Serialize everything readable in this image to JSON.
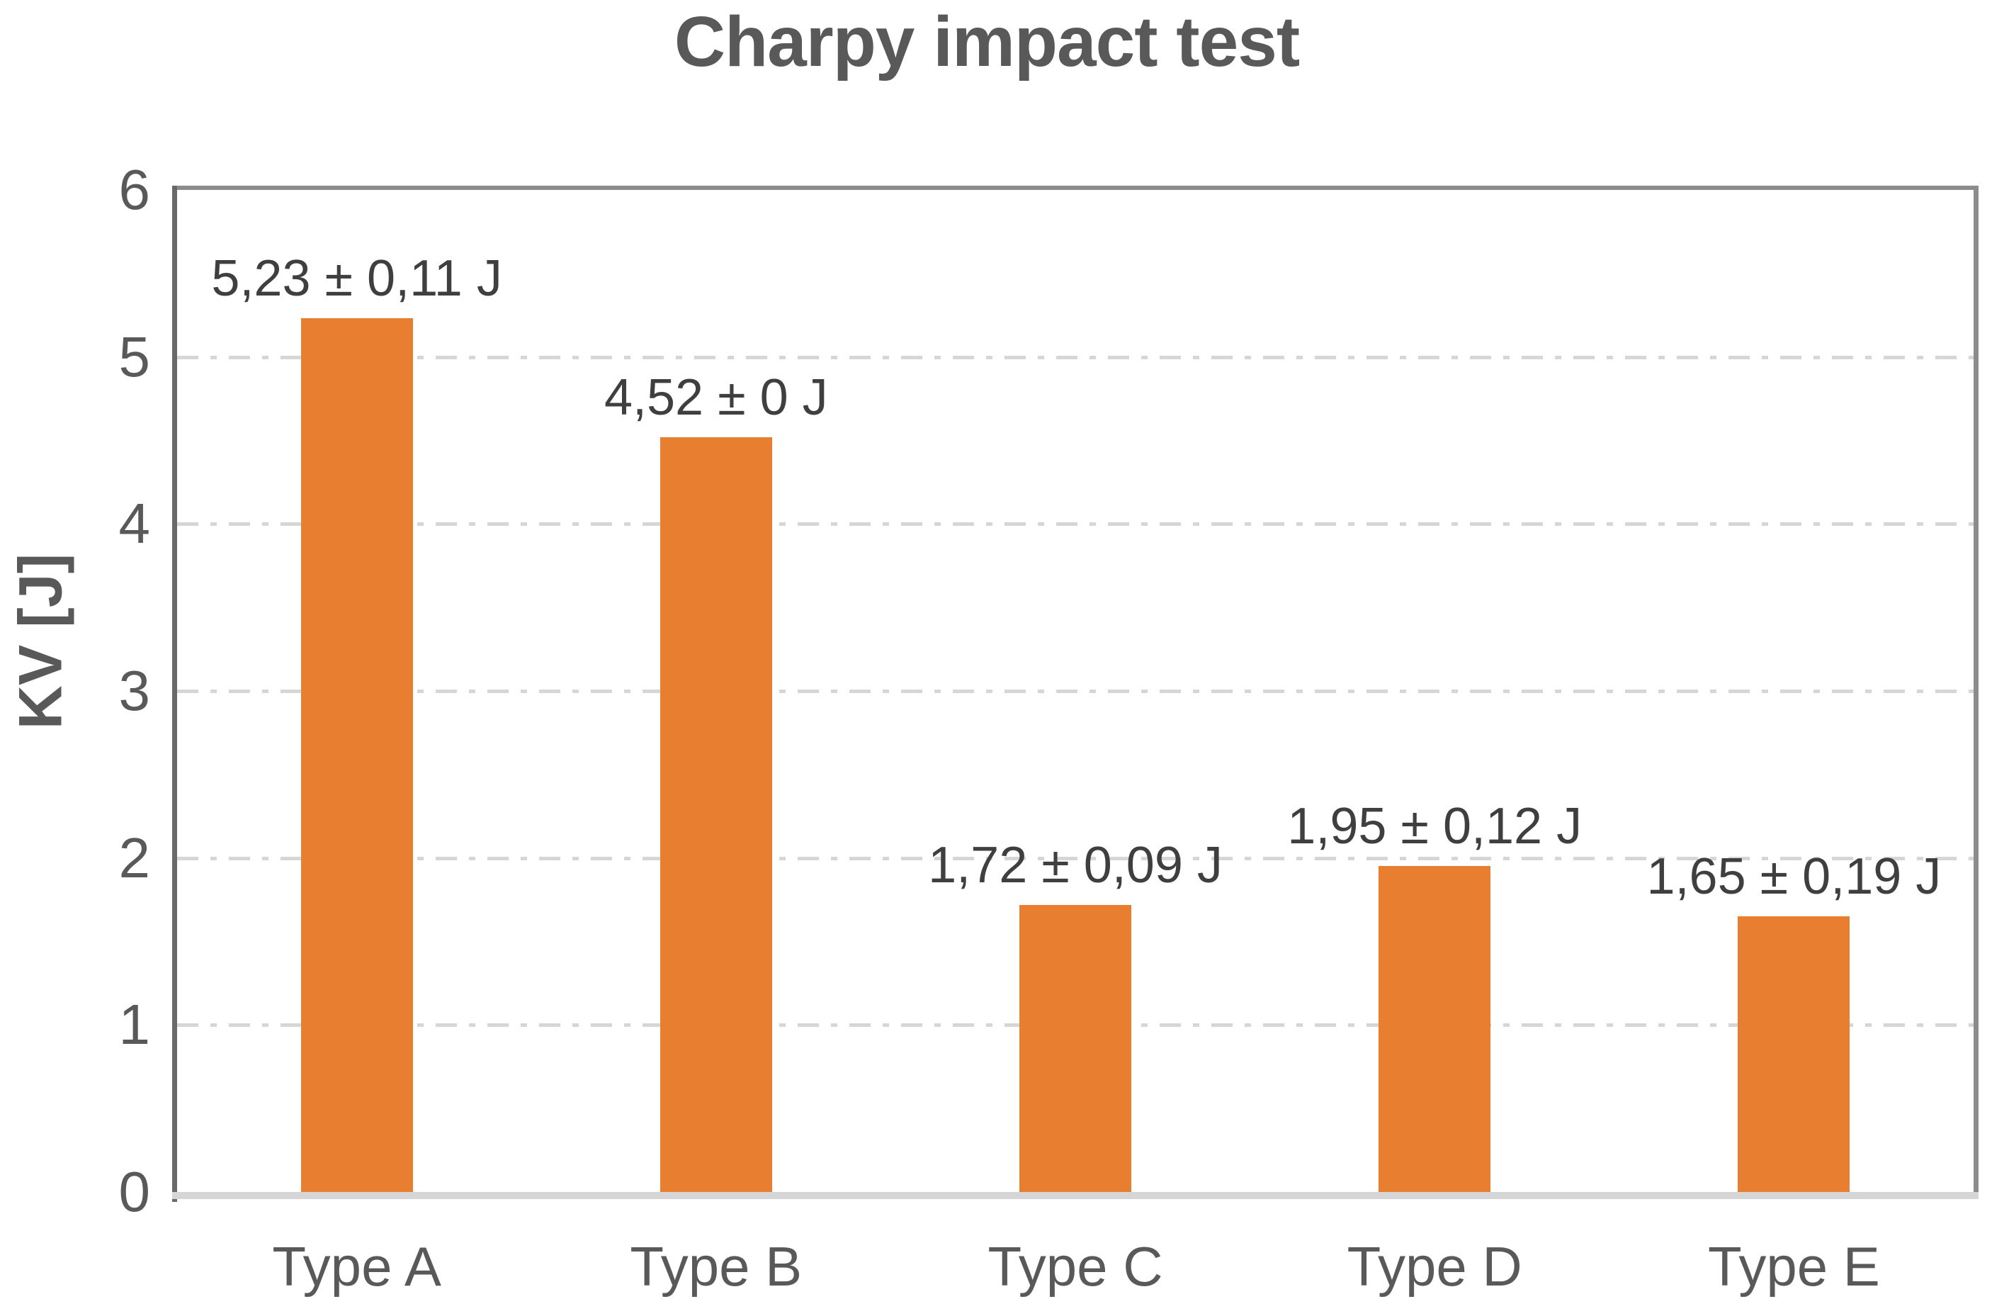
{
  "chart_data": {
    "type": "bar",
    "title": "Charpy impact test",
    "ylabel": "KV [J]",
    "xlabel": "",
    "categories": [
      "Type A",
      "Type B",
      "Type C",
      "Type D",
      "Type E"
    ],
    "values": [
      5.23,
      4.52,
      1.72,
      1.95,
      1.65
    ],
    "errors": [
      0.11,
      0,
      0.09,
      0.12,
      0.19
    ],
    "data_labels": [
      "5,23 ± 0,11 J",
      "4,52 ± 0 J",
      "1,72 ± 0,09 J",
      "1,95 ± 0,12 J",
      "1,65 ± 0,19 J"
    ],
    "y_ticks": [
      "0",
      "1",
      "2",
      "3",
      "4",
      "5",
      "6"
    ],
    "ylim": [
      0,
      6
    ],
    "legend": "none",
    "grid": "horizontal dash-dot lines at integer values",
    "colors": {
      "bar": "#E87E30",
      "title_text": "#595959",
      "data_label_text": "#3f3f3f",
      "tick_text": "#595959",
      "gridline": "#D6D6D6",
      "axis_line_left": "#696969",
      "plot_border": "#8C8C8C",
      "axis_line_bottom": "#D6D6D6"
    }
  }
}
